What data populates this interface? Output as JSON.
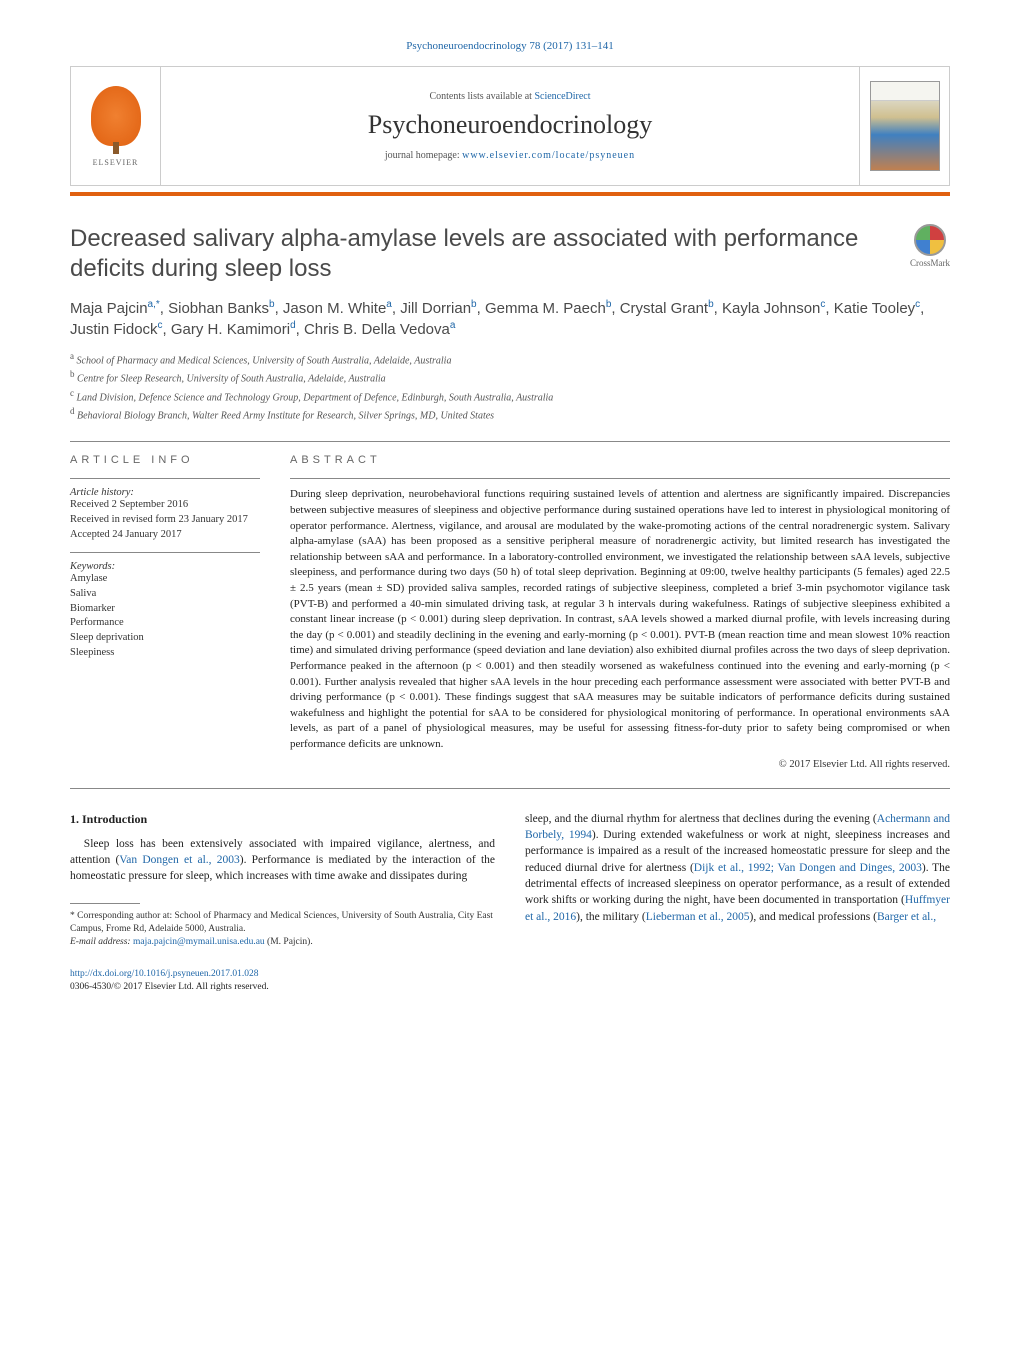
{
  "journal_ref": "Psychoneuroendocrinology 78 (2017) 131–141",
  "header": {
    "contents_prefix": "Contents lists available at ",
    "contents_link": "ScienceDirect",
    "journal_title": "Psychoneuroendocrinology",
    "homepage_prefix": "journal homepage: ",
    "homepage_link": "www.elsevier.com/locate/psyneuen",
    "publisher_logo_text": "ELSEVIER"
  },
  "crossmark_label": "CrossMark",
  "title": "Decreased salivary alpha-amylase levels are associated with performance deficits during sleep loss",
  "authors_html": "Maja Pajcin<sup>a,*</sup>, Siobhan Banks<sup>b</sup>, Jason M. White<sup>a</sup>, Jill Dorrian<sup>b</sup>, Gemma M. Paech<sup>b</sup>, Crystal Grant<sup>b</sup>, Kayla Johnson<sup>c</sup>, Katie Tooley<sup>c</sup>, Justin Fidock<sup>c</sup>, Gary H. Kamimori<sup>d</sup>, Chris B. Della Vedova<sup>a</sup>",
  "affiliations": [
    "a School of Pharmacy and Medical Sciences, University of South Australia, Adelaide, Australia",
    "b Centre for Sleep Research, University of South Australia, Adelaide, Australia",
    "c Land Division, Defence Science and Technology Group, Department of Defence, Edinburgh, South Australia, Australia",
    "d Behavioral Biology Branch, Walter Reed Army Institute for Research, Silver Springs, MD, United States"
  ],
  "article_info": {
    "heading": "ARTICLE INFO",
    "history_label": "Article history:",
    "history": [
      "Received 2 September 2016",
      "Received in revised form 23 January 2017",
      "Accepted 24 January 2017"
    ],
    "keywords_label": "Keywords:",
    "keywords": [
      "Amylase",
      "Saliva",
      "Biomarker",
      "Performance",
      "Sleep deprivation",
      "Sleepiness"
    ]
  },
  "abstract": {
    "heading": "ABSTRACT",
    "text": "During sleep deprivation, neurobehavioral functions requiring sustained levels of attention and alertness are significantly impaired. Discrepancies between subjective measures of sleepiness and objective performance during sustained operations have led to interest in physiological monitoring of operator performance. Alertness, vigilance, and arousal are modulated by the wake-promoting actions of the central noradrenergic system. Salivary alpha-amylase (sAA) has been proposed as a sensitive peripheral measure of noradrenergic activity, but limited research has investigated the relationship between sAA and performance. In a laboratory-controlled environment, we investigated the relationship between sAA levels, subjective sleepiness, and performance during two days (50 h) of total sleep deprivation. Beginning at 09:00, twelve healthy participants (5 females) aged 22.5 ± 2.5 years (mean ± SD) provided saliva samples, recorded ratings of subjective sleepiness, completed a brief 3-min psychomotor vigilance task (PVT-B) and performed a 40-min simulated driving task, at regular 3 h intervals during wakefulness. Ratings of subjective sleepiness exhibited a constant linear increase (p < 0.001) during sleep deprivation. In contrast, sAA levels showed a marked diurnal profile, with levels increasing during the day (p < 0.001) and steadily declining in the evening and early-morning (p < 0.001). PVT-B (mean reaction time and mean slowest 10% reaction time) and simulated driving performance (speed deviation and lane deviation) also exhibited diurnal profiles across the two days of sleep deprivation. Performance peaked in the afternoon (p < 0.001) and then steadily worsened as wakefulness continued into the evening and early-morning (p < 0.001). Further analysis revealed that higher sAA levels in the hour preceding each performance assessment were associated with better PVT-B and driving performance (p < 0.001). These findings suggest that sAA measures may be suitable indicators of performance deficits during sustained wakefulness and highlight the potential for sAA to be considered for physiological monitoring of performance. In operational environments sAA levels, as part of a panel of physiological measures, may be useful for assessing fitness-for-duty prior to safety being compromised or when performance deficits are unknown.",
    "copyright": "© 2017 Elsevier Ltd. All rights reserved."
  },
  "body": {
    "section_heading": "1. Introduction",
    "col1": "Sleep loss has been extensively associated with impaired vigilance, alertness, and attention (Van Dongen et al., 2003). Performance is mediated by the interaction of the homeostatic pressure for sleep, which increases with time awake and dissipates during",
    "col1_link": "Van Dongen et al., 2003",
    "col2_pre": "sleep, and the diurnal rhythm for alertness that declines during the evening (",
    "col2_link1": "Achermann and Borbely, 1994",
    "col2_mid1": "). During extended wakefulness or work at night, sleepiness increases and performance is impaired as a result of the increased homeostatic pressure for sleep and the reduced diurnal drive for alertness (",
    "col2_link2": "Dijk et al., 1992; Van Dongen and Dinges, 2003",
    "col2_mid2": "). The detrimental effects of increased sleepiness on operator performance, as a result of extended work shifts or working during the night, have been documented in transportation (",
    "col2_link3": "Huffmyer et al., 2016",
    "col2_mid3": "), the military (",
    "col2_link4": "Lieberman et al., 2005",
    "col2_mid4": "), and medical professions (",
    "col2_link5": "Barger et al.,"
  },
  "footnote": {
    "corresponding": "* Corresponding author at: School of Pharmacy and Medical Sciences, University of South Australia, City East Campus, Frome Rd, Adelaide 5000, Australia.",
    "email_label": "E-mail address: ",
    "email": "maja.pajcin@mymail.unisa.edu.au",
    "email_suffix": " (M. Pajcin)."
  },
  "footer": {
    "doi": "http://dx.doi.org/10.1016/j.psyneuen.2017.01.028",
    "issn_line": "0306-4530/© 2017 Elsevier Ltd. All rights reserved."
  },
  "colors": {
    "link": "#2067a8",
    "accent": "#e06010",
    "text": "#1a1a1a"
  }
}
